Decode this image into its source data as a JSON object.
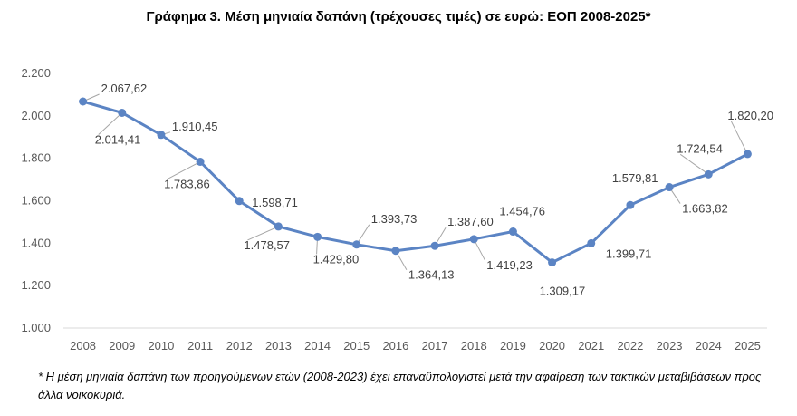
{
  "chart_data": {
    "type": "line",
    "title": "Γράφημα 3. Μέση μηνιαία δαπάνη (τρέχουσες τιμές) σε ευρώ: ΕΟΠ 2008-2025*",
    "xlabel": "",
    "ylabel": "",
    "ylim": [
      1000,
      2200
    ],
    "yticks": [
      "1.000",
      "1.200",
      "1.400",
      "1.600",
      "1.800",
      "2.000",
      "2.200"
    ],
    "ytick_values": [
      1000,
      1200,
      1400,
      1600,
      1800,
      2000,
      2200
    ],
    "grid": false,
    "legend": "none",
    "categories": [
      "2008",
      "2009",
      "2010",
      "2011",
      "2012",
      "2013",
      "2014",
      "2015",
      "2016",
      "2017",
      "2018",
      "2019",
      "2020",
      "2021",
      "2022",
      "2023",
      "2024",
      "2025"
    ],
    "series": [
      {
        "values": [
          2067.62,
          2014.41,
          1910.45,
          1783.86,
          1598.71,
          1478.57,
          1429.8,
          1393.73,
          1364.13,
          1387.6,
          1419.23,
          1454.76,
          1309.17,
          1399.71,
          1579.81,
          1663.82,
          1724.54,
          1820.2
        ],
        "labels": [
          "2.067,62",
          "2.014,41",
          "1.910,45",
          "1.783,86",
          "1.598,71",
          "1.478,57",
          "1.429,80",
          "1.393,73",
          "1.364,13",
          "1.387,60",
          "1.419,23",
          "1.454,76",
          "1.309,17",
          "1.399,71",
          "1.579,81",
          "1.663,82",
          "1.724,54",
          "1.820,20"
        ]
      }
    ],
    "line_color": "#5b84c4",
    "leader_color": "#a6a6a6",
    "axis_color": "#d9d9d9"
  },
  "footnote": "* Η μέση μηνιαία δαπάνη των προηγούμενων ετών (2008-2023) έχει επαναϋπολογιστεί μετά την αφαίρεση των τακτικών μεταβιβάσεων προς άλλα νοικοκυριά."
}
